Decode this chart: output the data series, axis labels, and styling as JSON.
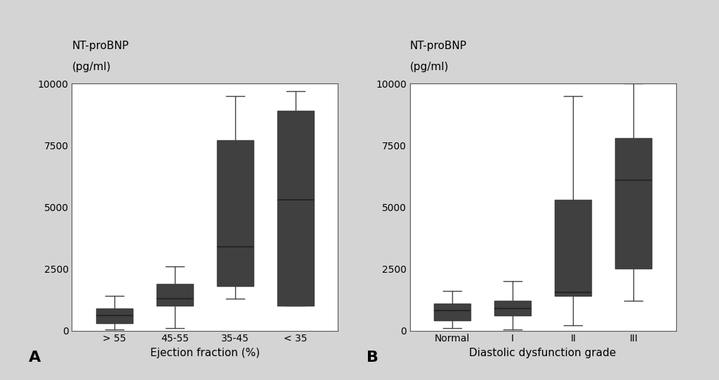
{
  "chart_A": {
    "title_line1": "NT-proBNP",
    "title_line2": "(pg/ml)",
    "xlabel": "Ejection fraction (%)",
    "categories": [
      "> 55",
      "45-55",
      "35-45",
      "< 35"
    ],
    "boxes": [
      {
        "whislo": 50,
        "q1": 300,
        "med": 600,
        "q3": 900,
        "whishi": 1400
      },
      {
        "whislo": 100,
        "q1": 1000,
        "med": 1300,
        "q3": 1900,
        "whishi": 2600
      },
      {
        "whislo": 1300,
        "q1": 1800,
        "med": 3400,
        "q3": 7700,
        "whishi": 9500
      },
      {
        "whislo": 1000,
        "q1": 1000,
        "med": 5300,
        "q3": 8900,
        "whishi": 9700
      }
    ],
    "ylim": [
      0,
      10000
    ],
    "yticks": [
      0,
      2500,
      5000,
      7500,
      10000
    ],
    "panel_label": "A"
  },
  "chart_B": {
    "title_line1": "NT-proBNP",
    "title_line2": "(pg/ml)",
    "xlabel": "Diastolic dysfunction grade",
    "categories": [
      "Normal",
      "I",
      "II",
      "III"
    ],
    "boxes": [
      {
        "whislo": 100,
        "q1": 400,
        "med": 800,
        "q3": 1100,
        "whishi": 1600
      },
      {
        "whislo": 50,
        "q1": 600,
        "med": 900,
        "q3": 1200,
        "whishi": 2000
      },
      {
        "whislo": 200,
        "q1": 1400,
        "med": 1550,
        "q3": 5300,
        "whishi": 9500
      },
      {
        "whislo": 1200,
        "q1": 2500,
        "med": 6100,
        "q3": 7800,
        "whishi": 10000
      }
    ],
    "ylim": [
      0,
      10000
    ],
    "yticks": [
      0,
      2500,
      5000,
      7500,
      10000
    ],
    "panel_label": "B"
  },
  "box_facecolor": "#909090",
  "box_edgecolor": "#404040",
  "median_color": "#202020",
  "background_color": "#ffffff",
  "fig_background": "#d4d4d4",
  "fontsize_title": 11,
  "fontsize_label": 11,
  "fontsize_tick": 10,
  "fontsize_panel": 16
}
